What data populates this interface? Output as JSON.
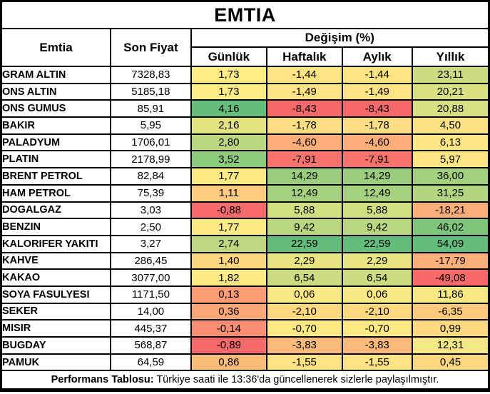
{
  "title": "EMTIA",
  "header": {
    "commodity_col": "Emtia",
    "price_col": "Son Fiyat",
    "change_group": "Değişim (%)",
    "periods": [
      "Günlük",
      "Haftalık",
      "Aylık",
      "Yıllık"
    ]
  },
  "footer": {
    "label": "Performans Tablosu:",
    "text": "Türkiye saati ile 13:36'da güncellenerek sizlerle paylaşılmıştır."
  },
  "colors": {
    "border": "#000000",
    "scale_min_red": "#F8696B",
    "scale_mid_yellow": "#FFEB84",
    "scale_max_green": "#63BE7B",
    "cell_text": "#000000",
    "background": "#FFFFFF"
  },
  "rows": [
    {
      "name": "GRAM ALTIN",
      "price": "7328,83",
      "changes": [
        {
          "v": "1,73",
          "bg": "#FFEB84"
        },
        {
          "v": "-1,44",
          "bg": "#FEE383"
        },
        {
          "v": "-1,44",
          "bg": "#FEE383"
        },
        {
          "v": "23,11",
          "bg": "#CEDC81"
        }
      ]
    },
    {
      "name": "ONS ALTIN",
      "price": "5185,18",
      "changes": [
        {
          "v": "1,73",
          "bg": "#FFEB84"
        },
        {
          "v": "-1,49",
          "bg": "#FEE283"
        },
        {
          "v": "-1,49",
          "bg": "#FEE283"
        },
        {
          "v": "20,21",
          "bg": "#D8E082"
        }
      ]
    },
    {
      "name": "ONS GUMUS",
      "price": "85,91",
      "changes": [
        {
          "v": "4,16",
          "bg": "#63BE7B"
        },
        {
          "v": "-8,43",
          "bg": "#F8696B"
        },
        {
          "v": "-8,43",
          "bg": "#F8696B"
        },
        {
          "v": "20,88",
          "bg": "#D6DF82"
        }
      ]
    },
    {
      "name": "BAKIR",
      "price": "5,95",
      "changes": [
        {
          "v": "2,16",
          "bg": "#E3E382"
        },
        {
          "v": "-1,78",
          "bg": "#FEDE82"
        },
        {
          "v": "-1,78",
          "bg": "#FEDE82"
        },
        {
          "v": "4,50",
          "bg": "#FEE182"
        }
      ]
    },
    {
      "name": "PALADYUM",
      "price": "1706,01",
      "changes": [
        {
          "v": "2,80",
          "bg": "#BAD780"
        },
        {
          "v": "-4,60",
          "bg": "#FCAD78"
        },
        {
          "v": "-4,60",
          "bg": "#FCAD78"
        },
        {
          "v": "6,13",
          "bg": "#FFE583"
        }
      ]
    },
    {
      "name": "PLATIN",
      "price": "2178,99",
      "changes": [
        {
          "v": "3,52",
          "bg": "#8CCA7D"
        },
        {
          "v": "-7,91",
          "bg": "#F8736D"
        },
        {
          "v": "-7,91",
          "bg": "#F8736D"
        },
        {
          "v": "5,97",
          "bg": "#FEE483"
        }
      ]
    },
    {
      "name": "BRENT PETROL",
      "price": "82,84",
      "changes": [
        {
          "v": "1,77",
          "bg": "#FDEA84"
        },
        {
          "v": "14,29",
          "bg": "#9ACE7E"
        },
        {
          "v": "14,29",
          "bg": "#9ACE7E"
        },
        {
          "v": "36,00",
          "bg": "#A2D07F"
        }
      ]
    },
    {
      "name": "HAM PETROL",
      "price": "75,39",
      "changes": [
        {
          "v": "1,11",
          "bg": "#FDCC7E"
        },
        {
          "v": "12,49",
          "bg": "#A6D17F"
        },
        {
          "v": "12,49",
          "bg": "#A6D17F"
        },
        {
          "v": "31,25",
          "bg": "#B2D580"
        }
      ]
    },
    {
      "name": "DOGALGAZ",
      "price": "3,03",
      "changes": [
        {
          "v": "-0,88",
          "bg": "#F86A6B"
        },
        {
          "v": "5,88",
          "bg": "#D1DE81"
        },
        {
          "v": "5,88",
          "bg": "#D1DE81"
        },
        {
          "v": "-18,21",
          "bg": "#FCAE78"
        }
      ]
    },
    {
      "name": "BENZIN",
      "price": "2,50",
      "changes": [
        {
          "v": "1,77",
          "bg": "#FDEA84"
        },
        {
          "v": "9,42",
          "bg": "#BAD780"
        },
        {
          "v": "9,42",
          "bg": "#BAD780"
        },
        {
          "v": "46,02",
          "bg": "#7FC67D"
        }
      ]
    },
    {
      "name": "KALORIFER YAKITI",
      "price": "3,27",
      "changes": [
        {
          "v": "2,74",
          "bg": "#BED880"
        },
        {
          "v": "22,59",
          "bg": "#63BE7B"
        },
        {
          "v": "22,59",
          "bg": "#63BE7B"
        },
        {
          "v": "54,09",
          "bg": "#63BE7B"
        }
      ]
    },
    {
      "name": "KAHVE",
      "price": "286,45",
      "changes": [
        {
          "v": "1,40",
          "bg": "#FDD57F"
        },
        {
          "v": "2,29",
          "bg": "#E9E583"
        },
        {
          "v": "2,29",
          "bg": "#E9E583"
        },
        {
          "v": "-17,79",
          "bg": "#FCAF78"
        }
      ]
    },
    {
      "name": "KAKAO",
      "price": "3077,00",
      "changes": [
        {
          "v": "1,82",
          "bg": "#FCE984"
        },
        {
          "v": "6,54",
          "bg": "#CDDC81"
        },
        {
          "v": "6,54",
          "bg": "#CDDC81"
        },
        {
          "v": "-49,08",
          "bg": "#F8696B"
        }
      ]
    },
    {
      "name": "SOYA FASULYESI",
      "price": "1171,50",
      "changes": [
        {
          "v": "0,13",
          "bg": "#FB9C75"
        },
        {
          "v": "0,06",
          "bg": "#F8E984"
        },
        {
          "v": "0,06",
          "bg": "#F8E984"
        },
        {
          "v": "11,86",
          "bg": "#F5E883"
        }
      ]
    },
    {
      "name": "SEKER",
      "price": "14,00",
      "changes": [
        {
          "v": "0,36",
          "bg": "#FBA777"
        },
        {
          "v": "-2,10",
          "bg": "#FED980"
        },
        {
          "v": "-2,10",
          "bg": "#FED980"
        },
        {
          "v": "-6,35",
          "bg": "#FDC97D"
        }
      ]
    },
    {
      "name": "MISIR",
      "price": "445,37",
      "changes": [
        {
          "v": "-0,14",
          "bg": "#FA8E72"
        },
        {
          "v": "-0,70",
          "bg": "#FDEA84"
        },
        {
          "v": "-0,70",
          "bg": "#FDEA84"
        },
        {
          "v": "0,99",
          "bg": "#FED981"
        }
      ]
    },
    {
      "name": "BUGDAY",
      "price": "568,87",
      "changes": [
        {
          "v": "-0,89",
          "bg": "#F8696B"
        },
        {
          "v": "-3,83",
          "bg": "#FCBA7B"
        },
        {
          "v": "-3,83",
          "bg": "#FCBA7B"
        },
        {
          "v": "12,31",
          "bg": "#F3E883"
        }
      ]
    },
    {
      "name": "PAMUK",
      "price": "64,59",
      "changes": [
        {
          "v": "0,86",
          "bg": "#FCBC7A"
        },
        {
          "v": "-1,55",
          "bg": "#FEE283"
        },
        {
          "v": "-1,55",
          "bg": "#FEE283"
        },
        {
          "v": "0,45",
          "bg": "#FED880"
        }
      ]
    }
  ],
  "chart_data": {
    "type": "table",
    "title": "EMTIA",
    "columns": [
      "Emtia",
      "Son Fiyat",
      "Günlük (%)",
      "Haftalık (%)",
      "Aylık (%)",
      "Yıllık (%)"
    ],
    "rows": [
      [
        "GRAM ALTIN",
        7328.83,
        1.73,
        -1.44,
        -1.44,
        23.11
      ],
      [
        "ONS ALTIN",
        5185.18,
        1.73,
        -1.49,
        -1.49,
        20.21
      ],
      [
        "ONS GUMUS",
        85.91,
        4.16,
        -8.43,
        -8.43,
        20.88
      ],
      [
        "BAKIR",
        5.95,
        2.16,
        -1.78,
        -1.78,
        4.5
      ],
      [
        "PALADYUM",
        1706.01,
        2.8,
        -4.6,
        -4.6,
        6.13
      ],
      [
        "PLATIN",
        2178.99,
        3.52,
        -7.91,
        -7.91,
        5.97
      ],
      [
        "BRENT PETROL",
        82.84,
        1.77,
        14.29,
        14.29,
        36.0
      ],
      [
        "HAM PETROL",
        75.39,
        1.11,
        12.49,
        12.49,
        31.25
      ],
      [
        "DOGALGAZ",
        3.03,
        -0.88,
        5.88,
        5.88,
        -18.21
      ],
      [
        "BENZIN",
        2.5,
        1.77,
        9.42,
        9.42,
        46.02
      ],
      [
        "KALORIFER YAKITI",
        3.27,
        2.74,
        22.59,
        22.59,
        54.09
      ],
      [
        "KAHVE",
        286.45,
        1.4,
        2.29,
        2.29,
        -17.79
      ],
      [
        "KAKAO",
        3077.0,
        1.82,
        6.54,
        6.54,
        -49.08
      ],
      [
        "SOYA FASULYESI",
        1171.5,
        0.13,
        0.06,
        0.06,
        11.86
      ],
      [
        "SEKER",
        14.0,
        0.36,
        -2.1,
        -2.1,
        -6.35
      ],
      [
        "MISIR",
        445.37,
        -0.14,
        -0.7,
        -0.7,
        0.99
      ],
      [
        "BUGDAY",
        568.87,
        -0.89,
        -3.83,
        -3.83,
        12.31
      ],
      [
        "PAMUK",
        64.59,
        0.86,
        -1.55,
        -1.55,
        0.45
      ]
    ],
    "notes": "Cell backgrounds follow a red-yellow-green conditional color scale applied per column (min=#F8696B, mid=#FFEB84, max=#63BE7B). Haftalık and Aylık columns contain identical values."
  }
}
